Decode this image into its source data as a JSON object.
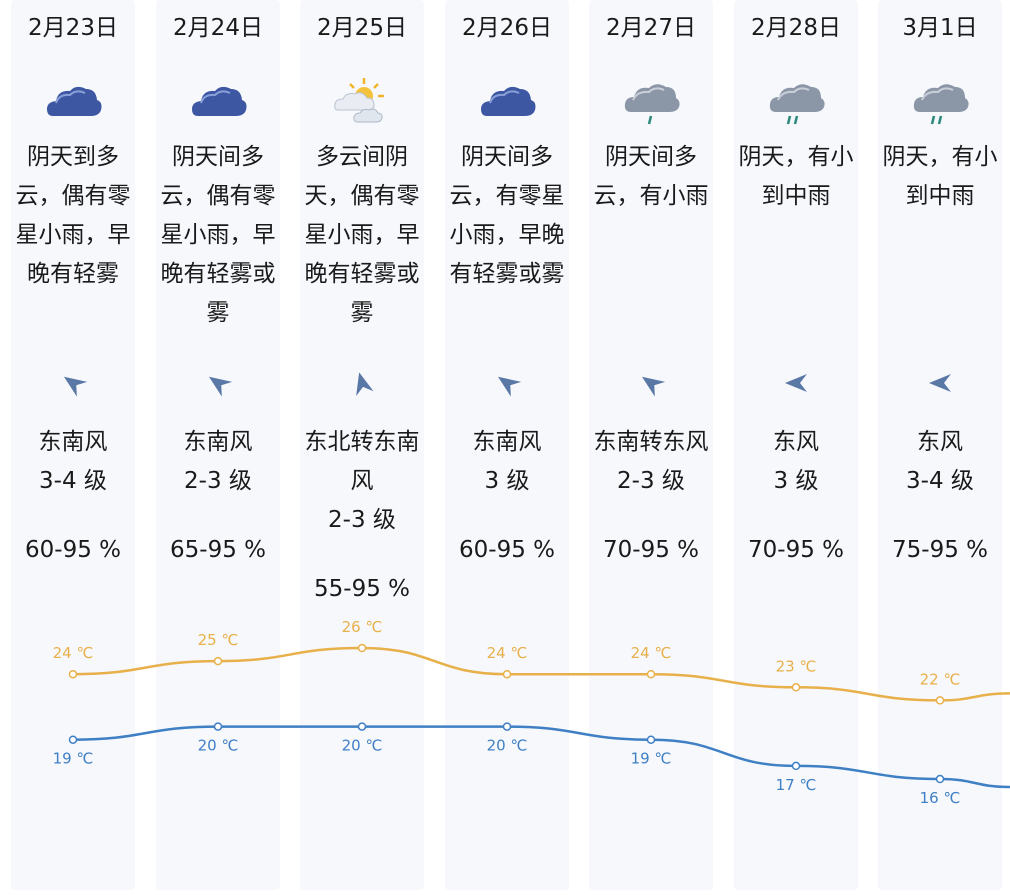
{
  "days": [
    {
      "date": "2月23日",
      "icon": "cloud-icon",
      "desc": [
        "阴天到多",
        "云，偶有零",
        "星小雨，早",
        "晚有轻雾"
      ],
      "wind_dir": "东南风",
      "wind_level": "3-4 级",
      "humidity": "60-95 %",
      "high": "24 ℃",
      "low": "19 ℃"
    },
    {
      "date": "2月24日",
      "icon": "cloud-icon",
      "desc": [
        "阴天间多",
        "云，偶有零",
        "星小雨，早",
        "晚有轻雾或",
        "雾"
      ],
      "wind_dir": "东南风",
      "wind_level": "2-3 级",
      "humidity": "65-95 %",
      "high": "25 ℃",
      "low": "20 ℃"
    },
    {
      "date": "2月25日",
      "icon": "sun-cloud-icon",
      "desc": [
        "多云间阴",
        "天，偶有零",
        "星小雨，早",
        "晚有轻雾或",
        "雾"
      ],
      "wind_dir": "东北转东南",
      "wind_dir2": "风",
      "wind_level": "2-3 级",
      "humidity": "55-95 %",
      "high": "26 ℃",
      "low": "20 ℃"
    },
    {
      "date": "2月26日",
      "icon": "cloud-icon",
      "desc": [
        "阴天间多",
        "云，有零星",
        "小雨，早晚",
        "有轻雾或雾"
      ],
      "wind_dir": "东南风",
      "wind_level": "3 级",
      "humidity": "60-95 %",
      "high": "24 ℃",
      "low": "20 ℃"
    },
    {
      "date": "2月27日",
      "icon": "light-rain-icon",
      "desc": [
        "阴天间多",
        "云，有小雨"
      ],
      "wind_dir": "东南转东风",
      "wind_level": "2-3 级",
      "humidity": "70-95 %",
      "high": "24 ℃",
      "low": "19 ℃"
    },
    {
      "date": "2月28日",
      "icon": "moderate-rain-icon",
      "desc": [
        "阴天，有小",
        "到中雨"
      ],
      "wind_dir": "东风",
      "wind_level": "3 级",
      "humidity": "70-95 %",
      "high": "23 ℃",
      "low": "17 ℃"
    },
    {
      "date": "3月1日",
      "icon": "moderate-rain-icon",
      "desc": [
        "阴天，有小",
        "到中雨"
      ],
      "wind_dir": "东风",
      "wind_level": "3-4 级",
      "humidity": "75-95 %",
      "high": "22 ℃",
      "low": "16 ℃"
    }
  ],
  "chart_data": {
    "type": "line",
    "categories": [
      "2月23日",
      "2月24日",
      "2月25日",
      "2月26日",
      "2月27日",
      "2月28日",
      "3月1日"
    ],
    "series": [
      {
        "values": [
          24,
          25,
          26,
          24,
          24,
          23,
          22
        ],
        "color": "#e8b04a"
      },
      {
        "values": [
          19,
          20,
          20,
          20,
          19,
          17,
          16
        ],
        "color": "#3f7fc4"
      }
    ],
    "unit": "℃"
  },
  "colors": {
    "high_line": "#e8b04a",
    "low_line": "#3f7fc4",
    "column_bg": "#f6f8fc"
  }
}
